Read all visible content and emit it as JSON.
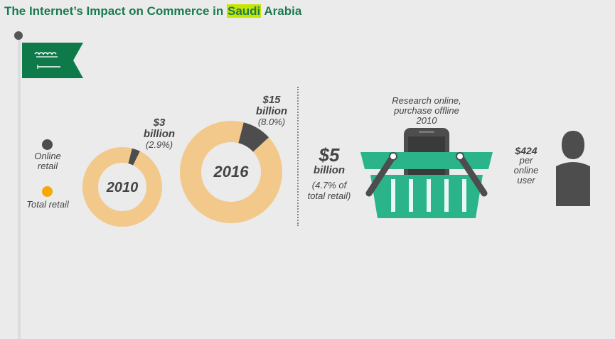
{
  "title": {
    "prefix": "The Internet’s Impact on Commerce in ",
    "highlight": "Saudi",
    "suffix": " Arabia"
  },
  "legend": [
    {
      "label": "Online retail",
      "color": "#4d4d4d"
    },
    {
      "label": "Total retail",
      "color": "#f5a800"
    }
  ],
  "colors": {
    "ring": "#f2c98a",
    "online": "#4d4d4d",
    "flag": "#0e7a4a",
    "basket": "#2bb38a",
    "title": "#1a7a52",
    "highlight": "#c6e600"
  },
  "chart_data": {
    "type": "pie",
    "series": [
      {
        "year": "2010",
        "online_value_label": "$3",
        "online_unit": "billion",
        "online_share_label": "(2.9%)",
        "online_share": 2.9
      },
      {
        "year": "2016",
        "online_value_label": "$15",
        "online_unit": "billion",
        "online_share_label": "(8.0%)",
        "online_share": 8.0
      }
    ]
  },
  "research": {
    "text": "Research online, purchase offline",
    "year": "2010",
    "value": "$5",
    "unit": "billion",
    "share": "(4.7% of total retail)"
  },
  "per_user": {
    "value": "$424",
    "label": "per online user"
  },
  "icons": [
    "flag-icon",
    "basket-icon",
    "phone-icon",
    "person-icon"
  ]
}
